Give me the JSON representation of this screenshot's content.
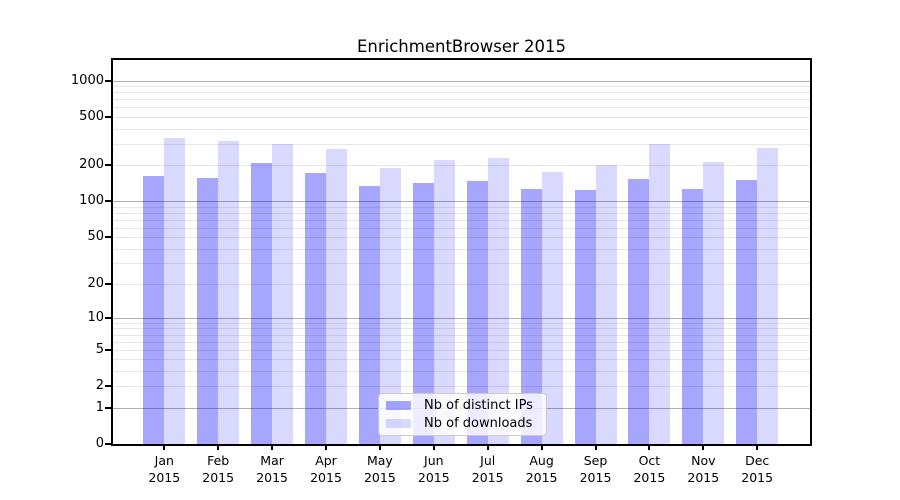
{
  "chart_data": {
    "type": "bar",
    "title": "EnrichmentBrowser 2015",
    "year": "2015",
    "categories": [
      "Jan",
      "Feb",
      "Mar",
      "Apr",
      "May",
      "Jun",
      "Jul",
      "Aug",
      "Sep",
      "Oct",
      "Nov",
      "Dec"
    ],
    "series": [
      {
        "name": "Nb of distinct IPs",
        "color": "rgba(0,0,255,0.35)",
        "color_on_white": "#a6a6ff",
        "values": [
          162,
          155,
          210,
          171,
          134,
          143,
          148,
          127,
          124,
          153,
          127,
          151
        ]
      },
      {
        "name": "Nb of downloads",
        "color": "rgba(0,0,255,0.15)",
        "color_on_white": "#d9d9ff",
        "values": [
          333,
          318,
          297,
          274,
          191,
          220,
          231,
          174,
          201,
          297,
          211,
          278
        ]
      }
    ],
    "y_scale": "log1p",
    "y_ticks": [
      0,
      1,
      2,
      5,
      10,
      20,
      50,
      100,
      200,
      500,
      1000
    ],
    "y_major_grid": [
      1,
      10,
      100,
      1000
    ],
    "ylim": [
      0,
      1480
    ],
    "grid": true,
    "legend_position": "lower center",
    "grid_major_color": "#b0b0b0",
    "grid_minor_color": "#e8e8e8"
  }
}
